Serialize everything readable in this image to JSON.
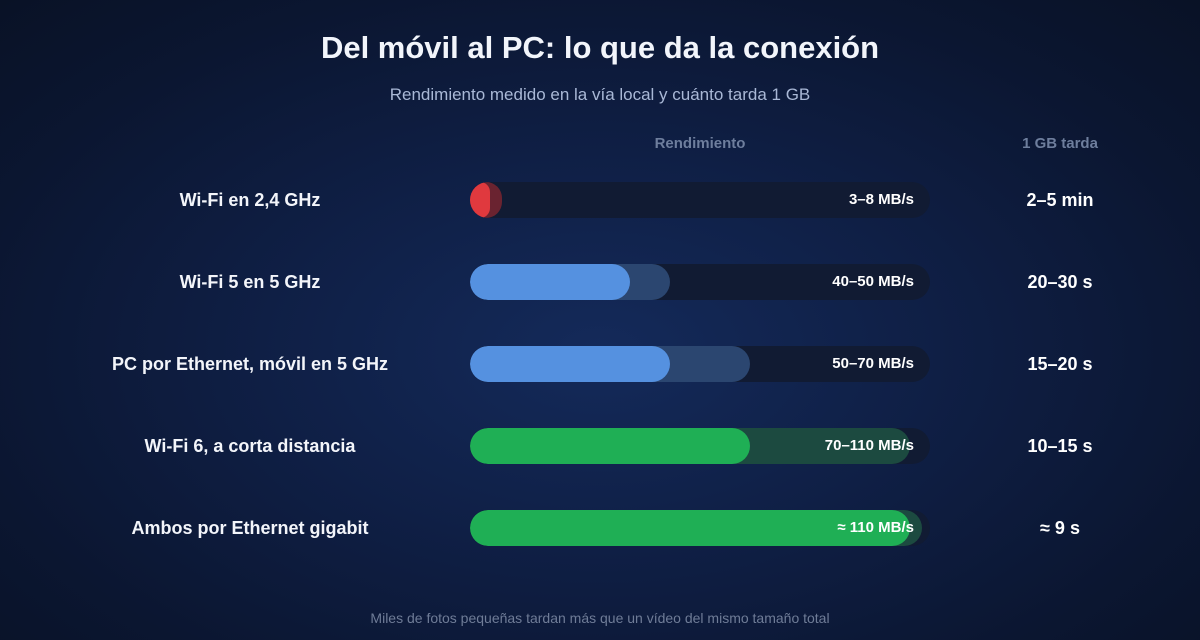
{
  "title": "Del móvil al PC: lo que da la conexión",
  "subtitle": "Rendimiento medido en la vía local y cuánto tarda 1 GB",
  "column_headers": {
    "throughput": "Rendimiento",
    "time_per_gb": "1 GB tarda"
  },
  "footnote": "Miles de fotos pequeñas tardan más que un vídeo del mismo tamaño total",
  "colors": {
    "red": "#e0393e",
    "red_range": "#6a2330",
    "blue": "#5591e0",
    "blue_range": "#2b4670",
    "green": "#1faf55",
    "green_range": "#1c4a40",
    "track": "#111b33"
  },
  "chart_data": {
    "type": "bar",
    "orientation": "horizontal",
    "value_unit": "MB/s",
    "xlim": [
      0,
      115
    ],
    "grid": false,
    "categories": [
      "Wi-Fi en 2,4 GHz",
      "Wi-Fi 5 en 5 GHz",
      "PC por Ethernet, móvil en 5 GHz",
      "Wi-Fi 6, a corta distancia",
      "Ambos por Ethernet gigabit"
    ],
    "ranges": [
      [
        3,
        8
      ],
      [
        40,
        50
      ],
      [
        50,
        70
      ],
      [
        70,
        110
      ],
      [
        110,
        113
      ]
    ],
    "value_labels": [
      "3–8 MB/s",
      "40–50 MB/s",
      "50–70 MB/s",
      "70–110 MB/s",
      "≈ 110 MB/s"
    ],
    "time_labels": [
      "2–5 min",
      "20–30 s",
      "15–20 s",
      "10–15 s",
      "≈ 9 s"
    ],
    "color_keys": [
      "red",
      "blue",
      "blue",
      "green",
      "green"
    ]
  }
}
